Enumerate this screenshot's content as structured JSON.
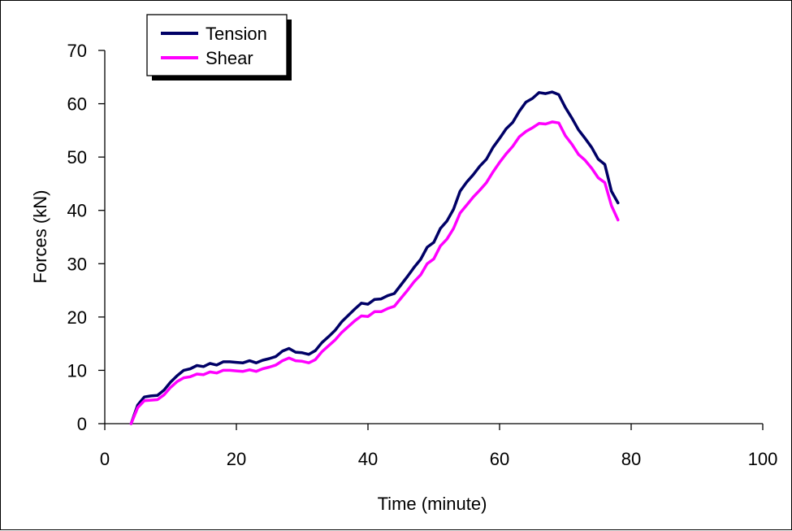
{
  "chart_data": {
    "type": "line",
    "xlabel": "Time (minute)",
    "ylabel": "Forces (kN)",
    "xlim": [
      0,
      100
    ],
    "ylim": [
      0,
      70
    ],
    "xticks": [
      0,
      20,
      40,
      60,
      80,
      100
    ],
    "yticks": [
      0,
      10,
      20,
      30,
      40,
      50,
      60,
      70
    ],
    "grid": false,
    "legend": {
      "placement": "top-left"
    },
    "series": [
      {
        "name": "Tension",
        "color": "#000066",
        "points": [
          [
            4,
            0
          ],
          [
            5,
            3.5
          ],
          [
            6,
            5
          ],
          [
            7,
            5.2
          ],
          [
            8,
            5.3
          ],
          [
            9,
            6.3
          ],
          [
            10,
            7.8
          ],
          [
            11,
            9
          ],
          [
            12,
            10
          ],
          [
            13,
            10.3
          ],
          [
            14,
            10.9
          ],
          [
            15,
            10.7
          ],
          [
            16,
            11.3
          ],
          [
            17,
            11
          ],
          [
            18,
            11.6
          ],
          [
            19,
            11.6
          ],
          [
            20,
            11.5
          ],
          [
            21,
            11.4
          ],
          [
            22,
            11.8
          ],
          [
            23,
            11.4
          ],
          [
            24,
            11.9
          ],
          [
            25,
            12.2
          ],
          [
            26,
            12.6
          ],
          [
            27,
            13.6
          ],
          [
            28,
            14.1
          ],
          [
            29,
            13.4
          ],
          [
            30,
            13.3
          ],
          [
            31,
            13
          ],
          [
            32,
            13.7
          ],
          [
            33,
            15.2
          ],
          [
            34,
            16.3
          ],
          [
            35,
            17.5
          ],
          [
            36,
            19.1
          ],
          [
            37,
            20.3
          ],
          [
            38,
            21.5
          ],
          [
            39,
            22.6
          ],
          [
            40,
            22.4
          ],
          [
            41,
            23.3
          ],
          [
            42,
            23.4
          ],
          [
            43,
            24
          ],
          [
            44,
            24.4
          ],
          [
            45,
            26
          ],
          [
            46,
            27.6
          ],
          [
            47,
            29.3
          ],
          [
            48,
            30.8
          ],
          [
            49,
            33.1
          ],
          [
            50,
            34
          ],
          [
            51,
            36.6
          ],
          [
            52,
            38
          ],
          [
            53,
            40.2
          ],
          [
            54,
            43.6
          ],
          [
            55,
            45.3
          ],
          [
            56,
            46.7
          ],
          [
            57,
            48.3
          ],
          [
            58,
            49.6
          ],
          [
            59,
            51.8
          ],
          [
            60,
            53.5
          ],
          [
            61,
            55.3
          ],
          [
            62,
            56.5
          ],
          [
            63,
            58.6
          ],
          [
            64,
            60.3
          ],
          [
            65,
            61
          ],
          [
            66,
            62.1
          ],
          [
            67,
            61.9
          ],
          [
            68,
            62.2
          ],
          [
            69,
            61.7
          ],
          [
            70,
            59.3
          ],
          [
            71,
            57.3
          ],
          [
            72,
            55.1
          ],
          [
            73,
            53.5
          ],
          [
            74,
            51.8
          ],
          [
            75,
            49.6
          ],
          [
            76,
            48.6
          ],
          [
            77,
            43.6
          ],
          [
            78,
            41.4
          ]
        ]
      },
      {
        "name": "Shear",
        "color": "#ff00ff",
        "points": [
          [
            4,
            0
          ],
          [
            5,
            3
          ],
          [
            6,
            4.3
          ],
          [
            7,
            4.4
          ],
          [
            8,
            4.5
          ],
          [
            9,
            5.4
          ],
          [
            10,
            6.8
          ],
          [
            11,
            7.9
          ],
          [
            12,
            8.6
          ],
          [
            13,
            8.8
          ],
          [
            14,
            9.3
          ],
          [
            15,
            9.2
          ],
          [
            16,
            9.7
          ],
          [
            17,
            9.5
          ],
          [
            18,
            10
          ],
          [
            19,
            10
          ],
          [
            20,
            9.9
          ],
          [
            21,
            9.8
          ],
          [
            22,
            10.1
          ],
          [
            23,
            9.8
          ],
          [
            24,
            10.3
          ],
          [
            25,
            10.6
          ],
          [
            26,
            11
          ],
          [
            27,
            11.8
          ],
          [
            28,
            12.3
          ],
          [
            29,
            11.8
          ],
          [
            30,
            11.7
          ],
          [
            31,
            11.4
          ],
          [
            32,
            12
          ],
          [
            33,
            13.5
          ],
          [
            34,
            14.6
          ],
          [
            35,
            15.7
          ],
          [
            36,
            17.1
          ],
          [
            37,
            18.2
          ],
          [
            38,
            19.3
          ],
          [
            39,
            20.2
          ],
          [
            40,
            20.1
          ],
          [
            41,
            21
          ],
          [
            42,
            21
          ],
          [
            43,
            21.6
          ],
          [
            44,
            22
          ],
          [
            45,
            23.5
          ],
          [
            46,
            25
          ],
          [
            47,
            26.6
          ],
          [
            48,
            27.9
          ],
          [
            49,
            30
          ],
          [
            50,
            30.9
          ],
          [
            51,
            33.3
          ],
          [
            52,
            34.6
          ],
          [
            53,
            36.6
          ],
          [
            54,
            39.5
          ],
          [
            55,
            41
          ],
          [
            56,
            42.5
          ],
          [
            57,
            43.8
          ],
          [
            58,
            45.2
          ],
          [
            59,
            47.2
          ],
          [
            60,
            49
          ],
          [
            61,
            50.6
          ],
          [
            62,
            52
          ],
          [
            63,
            53.8
          ],
          [
            64,
            54.8
          ],
          [
            65,
            55.5
          ],
          [
            66,
            56.3
          ],
          [
            67,
            56.2
          ],
          [
            68,
            56.6
          ],
          [
            69,
            56.4
          ],
          [
            70,
            54
          ],
          [
            71,
            52.4
          ],
          [
            72,
            50.5
          ],
          [
            73,
            49.4
          ],
          [
            74,
            47.9
          ],
          [
            75,
            46.1
          ],
          [
            76,
            45.2
          ],
          [
            77,
            40.9
          ],
          [
            78,
            38.2
          ]
        ]
      }
    ]
  }
}
